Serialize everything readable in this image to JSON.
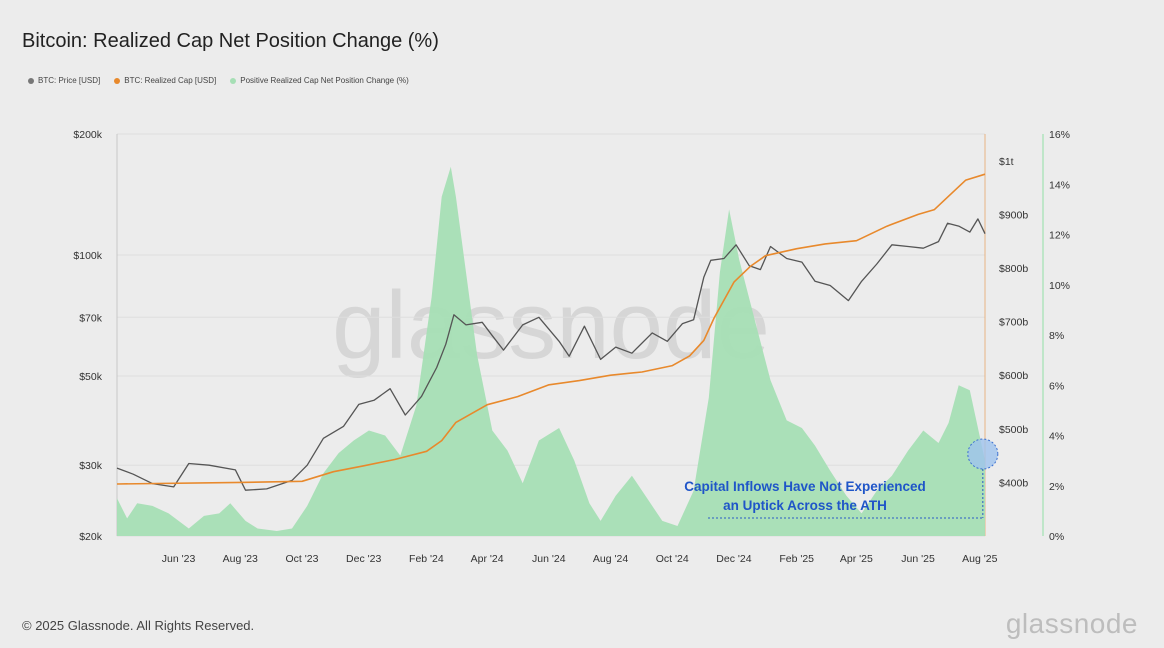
{
  "title": "Bitcoin: Realized Cap Net Position Change (%)",
  "legend": [
    {
      "label": "BTC: Price [USD]",
      "color": "#777777"
    },
    {
      "label": "BTC: Realized Cap [USD]",
      "color": "#e8892c"
    },
    {
      "label": "Positive Realized Cap Net Position Change (%)",
      "color": "#a6dfb5"
    }
  ],
  "footer": "© 2025 Glassnode. All Rights Reserved.",
  "brand": "glassnode",
  "watermark": "glassnode",
  "annotation": {
    "line1": "Capital Inflows Have Not Experienced",
    "line2": "an Uptick Across the ATH"
  },
  "chart_data": {
    "type": "line",
    "title": "Bitcoin: Realized Cap Net Position Change (%)",
    "x_tick_labels": [
      "Jun '23",
      "Aug '23",
      "Oct '23",
      "Dec '23",
      "Feb '24",
      "Apr '24",
      "Jun '24",
      "Aug '24",
      "Oct '24",
      "Dec '24",
      "Feb '25",
      "Apr '25",
      "Jun '25",
      "Aug '25"
    ],
    "x_range": [
      "2023-04-15",
      "2025-08-20"
    ],
    "y_left": {
      "scale": "log",
      "range": [
        20000,
        200000
      ],
      "tick_values": [
        20000,
        30000,
        50000,
        70000,
        100000,
        200000
      ],
      "tick_labels": [
        "$20k",
        "$30k",
        "$50k",
        "$70k",
        "$100k",
        "$200k"
      ]
    },
    "y_mid": {
      "scale": "linear",
      "range": [
        300,
        1050
      ],
      "tick_values": [
        400,
        500,
        600,
        700,
        800,
        900,
        1000
      ],
      "tick_labels": [
        "$400b",
        "$500b",
        "$600b",
        "$700b",
        "$800b",
        "$900b",
        "$1t"
      ]
    },
    "y_right": {
      "scale": "linear",
      "range": [
        0,
        16
      ],
      "tick_values": [
        0,
        2,
        4,
        6,
        8,
        10,
        12,
        14,
        16
      ],
      "tick_labels": [
        "0%",
        "2%",
        "4%",
        "6%",
        "8%",
        "10%",
        "12%",
        "14%",
        "16%"
      ]
    },
    "series": [
      {
        "name": "Positive Realized Cap Net Position Change (%)",
        "axis": "right",
        "style": "area",
        "color": "#a6dfb5",
        "x": [
          "2023-04-15",
          "2023-04-25",
          "2023-05-05",
          "2023-05-20",
          "2023-06-05",
          "2023-06-25",
          "2023-07-10",
          "2023-07-25",
          "2023-08-05",
          "2023-08-20",
          "2023-09-01",
          "2023-09-20",
          "2023-10-05",
          "2023-10-20",
          "2023-11-05",
          "2023-11-20",
          "2023-12-05",
          "2023-12-20",
          "2024-01-05",
          "2024-01-20",
          "2024-02-05",
          "2024-02-20",
          "2024-03-01",
          "2024-03-10",
          "2024-03-15",
          "2024-03-25",
          "2024-04-05",
          "2024-04-20",
          "2024-05-05",
          "2024-05-20",
          "2024-06-05",
          "2024-06-25",
          "2024-07-10",
          "2024-07-25",
          "2024-08-05",
          "2024-08-20",
          "2024-09-05",
          "2024-09-20",
          "2024-10-05",
          "2024-10-20",
          "2024-11-05",
          "2024-11-20",
          "2024-12-01",
          "2024-12-10",
          "2024-12-20",
          "2025-01-05",
          "2025-01-20",
          "2025-02-05",
          "2025-02-20",
          "2025-03-05",
          "2025-03-20",
          "2025-04-05",
          "2025-04-20",
          "2025-05-05",
          "2025-05-20",
          "2025-06-05",
          "2025-06-20",
          "2025-07-05",
          "2025-07-15",
          "2025-07-25",
          "2025-08-05",
          "2025-08-20"
        ],
        "values": [
          1.5,
          0.7,
          1.3,
          1.2,
          0.9,
          0.3,
          0.8,
          0.9,
          1.3,
          0.6,
          0.3,
          0.2,
          0.3,
          1.2,
          2.5,
          3.3,
          3.8,
          4.2,
          4.0,
          3.2,
          5.2,
          9.5,
          13.5,
          14.7,
          13.5,
          10.5,
          7.2,
          4.2,
          3.4,
          2.1,
          3.8,
          4.3,
          3.0,
          1.3,
          0.6,
          1.6,
          2.4,
          1.5,
          0.6,
          0.4,
          1.8,
          5.5,
          10.5,
          13.0,
          11.0,
          8.5,
          6.2,
          4.6,
          4.3,
          3.6,
          2.6,
          1.6,
          0.9,
          1.8,
          2.4,
          3.4,
          4.2,
          3.7,
          4.5,
          6.0,
          5.8,
          3.0
        ]
      },
      {
        "name": "BTC: Price [USD]",
        "axis": "left",
        "style": "line",
        "color": "#555555",
        "x": [
          "2023-04-15",
          "2023-05-01",
          "2023-05-20",
          "2023-06-10",
          "2023-06-25",
          "2023-07-15",
          "2023-08-10",
          "2023-08-20",
          "2023-09-10",
          "2023-10-05",
          "2023-10-20",
          "2023-11-05",
          "2023-11-25",
          "2023-12-10",
          "2023-12-25",
          "2024-01-10",
          "2024-01-25",
          "2024-02-10",
          "2024-02-25",
          "2024-03-05",
          "2024-03-13",
          "2024-03-25",
          "2024-04-10",
          "2024-04-20",
          "2024-05-01",
          "2024-05-20",
          "2024-06-05",
          "2024-06-25",
          "2024-07-05",
          "2024-07-20",
          "2024-08-05",
          "2024-08-20",
          "2024-09-05",
          "2024-09-25",
          "2024-10-10",
          "2024-10-25",
          "2024-11-05",
          "2024-11-15",
          "2024-11-22",
          "2024-12-05",
          "2024-12-17",
          "2024-12-30",
          "2025-01-10",
          "2025-01-20",
          "2025-02-05",
          "2025-02-20",
          "2025-03-05",
          "2025-03-20",
          "2025-04-07",
          "2025-04-20",
          "2025-05-05",
          "2025-05-20",
          "2025-06-05",
          "2025-06-20",
          "2025-07-05",
          "2025-07-14",
          "2025-07-25",
          "2025-08-05",
          "2025-08-13",
          "2025-08-20"
        ],
        "values": [
          29500,
          28500,
          27000,
          26500,
          30300,
          30000,
          29200,
          26000,
          26200,
          27500,
          30000,
          35000,
          37500,
          42500,
          43500,
          46500,
          40000,
          44500,
          52500,
          60000,
          71000,
          67000,
          68000,
          63000,
          58000,
          67000,
          70000,
          61000,
          56000,
          66500,
          55000,
          59000,
          57000,
          64000,
          61000,
          67500,
          69000,
          88000,
          97000,
          98000,
          106000,
          94000,
          92000,
          105000,
          98000,
          96000,
          86000,
          84000,
          77000,
          86000,
          95000,
          106000,
          105000,
          104000,
          108000,
          120000,
          118000,
          114000,
          123000,
          113000
        ]
      },
      {
        "name": "BTC: Realized Cap [USD]",
        "axis": "mid",
        "style": "line",
        "color": "#e8892c",
        "x": [
          "2023-04-15",
          "2023-08-15",
          "2023-10-15",
          "2023-11-15",
          "2023-12-15",
          "2024-01-15",
          "2024-02-15",
          "2024-03-01",
          "2024-03-15",
          "2024-04-15",
          "2024-05-15",
          "2024-06-15",
          "2024-07-15",
          "2024-08-15",
          "2024-09-15",
          "2024-10-15",
          "2024-11-01",
          "2024-11-15",
          "2024-11-25",
          "2024-12-15",
          "2024-12-31",
          "2025-01-15",
          "2025-02-15",
          "2025-03-15",
          "2025-04-15",
          "2025-05-15",
          "2025-06-15",
          "2025-07-01",
          "2025-07-15",
          "2025-08-01",
          "2025-08-20"
        ],
        "values": [
          397,
          400,
          402,
          420,
          431,
          443,
          458,
          478,
          512,
          545,
          560,
          582,
          590,
          600,
          606,
          618,
          636,
          665,
          706,
          774,
          803,
          823,
          836,
          845,
          851,
          878,
          900,
          909,
          934,
          964,
          975
        ]
      }
    ]
  }
}
